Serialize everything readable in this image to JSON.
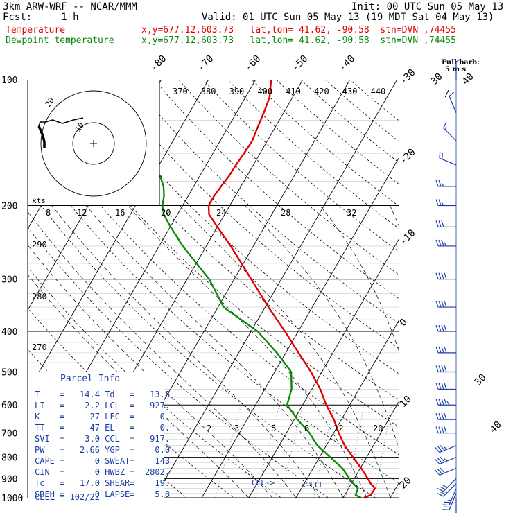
{
  "header": {
    "model": "3km ARW-WRF -- NCAR/MMM",
    "init": "Init: 00 UTC Sun 05 May 13",
    "fcst": "Fcst:     1 h",
    "valid": "Valid: 01 UTC Sun 05 May 13 (19 MDT Sat 04 May 13)",
    "temp_label": "Temperature",
    "temp_info": "x,y=677.12,603.73   lat,lon= 41.62, -90.58  stn=DVN ,74455",
    "dew_label": "Dewpoint temperature",
    "dew_info": "x,y=677.12,603.73   lat,lon= 41.62, -90.58  stn=DVN ,74455",
    "barb_title": "Full barb:",
    "barb_units": "5 m s"
  },
  "colors": {
    "temperature": "#e00000",
    "dewpoint": "#0a8a0a",
    "parcel_text": "#1a3fa8",
    "wind_barbs": "#1a3fa8",
    "grid": "#000000",
    "hodograph": "#000000"
  },
  "parcel": {
    "title": "Parcel Info",
    "rows": [
      {
        "k1": "T",
        "v1": "14.4",
        "k2": "Td",
        "v2": "13.8"
      },
      {
        "k1": "LI",
        "v1": "2.2",
        "k2": "LCL",
        "v2": "927."
      },
      {
        "k1": "K",
        "v1": "27",
        "k2": "LFC",
        "v2": "0."
      },
      {
        "k1": "TT",
        "v1": "47",
        "k2": "EL",
        "v2": "0."
      },
      {
        "k1": "SVI",
        "v1": "3.0",
        "k2": "CCL",
        "v2": "917."
      },
      {
        "k1": "PW",
        "v1": "2.66",
        "k2": "YGP",
        "v2": "0.0"
      },
      {
        "k1": "CAPE",
        "v1": "0",
        "k2": "SWEAT",
        "v2": "143"
      },
      {
        "k1": "CIN",
        "v1": "0",
        "k2": "HWBZ",
        "v2": "2802."
      },
      {
        "k1": "Tc",
        "v1": "17.0",
        "k2": "SHEAR",
        "v2": "19."
      },
      {
        "k1": "SREH",
        "v1": "0",
        "k2": "LAPSE",
        "v2": "5.8"
      }
    ],
    "cell": "CELL = 102/22"
  },
  "chart_data": {
    "type": "line",
    "title": "",
    "xlabel": "",
    "ylabel": "",
    "pressure_ticks": [
      100,
      200,
      300,
      400,
      500,
      600,
      700,
      800,
      900,
      1000
    ],
    "isotherm_labels": [
      -80,
      -70,
      -60,
      -50,
      -40,
      -30,
      -20,
      -10,
      0,
      10,
      20,
      30,
      40
    ],
    "theta_labels": [
      290,
      280,
      270
    ],
    "thetae_labels": [
      370,
      380,
      390,
      400,
      410,
      420,
      430,
      440
    ],
    "mixing_ratio_labels": [
      2,
      3,
      5,
      8,
      12,
      20
    ],
    "hodo_speed_labels": [
      "kts",
      "8",
      "12",
      "16",
      "20",
      "24",
      "28",
      "32"
    ],
    "hodo_ring_labels": [
      "20",
      "10"
    ],
    "markers": {
      "ccl": "CCL->",
      "lcl": "<-LCL"
    },
    "series": [
      {
        "name": "Temperature",
        "p": [
          1000,
          985,
          950,
          925,
          900,
          850,
          800,
          750,
          700,
          650,
          600,
          550,
          500,
          450,
          400,
          350,
          300,
          250,
          225,
          210,
          200,
          190,
          180,
          170,
          160,
          150,
          140,
          130,
          120,
          110,
          100
        ],
        "t": [
          14.4,
          15.5,
          15.6,
          14.1,
          12.9,
          10.2,
          7.1,
          3.9,
          1.1,
          -1.6,
          -5.0,
          -8.2,
          -12.3,
          -17.3,
          -22.8,
          -29.3,
          -36.4,
          -44.8,
          -50.0,
          -53.3,
          -54.5,
          -54.5,
          -54.2,
          -53.8,
          -53.7,
          -53.4,
          -53.2,
          -53.7,
          -54.2,
          -54.9,
          -56.7
        ]
      },
      {
        "name": "Dewpoint temperature",
        "p": [
          1000,
          985,
          950,
          925,
          900,
          850,
          800,
          750,
          700,
          650,
          600,
          550,
          500,
          450,
          400,
          350,
          300,
          250,
          225,
          210,
          200,
          190,
          180,
          170,
          160,
          150,
          140,
          130,
          120,
          110,
          100
        ],
        "t": [
          13.8,
          12.3,
          12.0,
          10.4,
          9.0,
          6.2,
          2.3,
          -1.9,
          -5.1,
          -9.3,
          -13.3,
          -14.3,
          -16.5,
          -21.9,
          -28.6,
          -38.8,
          -45.3,
          -55.0,
          -59.9,
          -62.9,
          -64.3,
          -65.1,
          -66.4,
          -68.4,
          -71.7,
          -74.5,
          -77.2,
          -79.5,
          -81.6,
          -82.6,
          -81.0
        ]
      }
    ],
    "wind_barbs": [
      {
        "p": 1000,
        "sector": "S",
        "speed": 15
      },
      {
        "p": 975,
        "sector": "SSW",
        "speed": 20
      },
      {
        "p": 950,
        "sector": "SSW",
        "speed": 25
      },
      {
        "p": 925,
        "sector": "SW",
        "speed": 25
      },
      {
        "p": 900,
        "sector": "SW",
        "speed": 30
      },
      {
        "p": 850,
        "sector": "WSW",
        "speed": 30
      },
      {
        "p": 800,
        "sector": "WSW",
        "speed": 35
      },
      {
        "p": 750,
        "sector": "WSW",
        "speed": 35
      },
      {
        "p": 700,
        "sector": "W",
        "speed": 40
      },
      {
        "p": 650,
        "sector": "W",
        "speed": 40
      },
      {
        "p": 600,
        "sector": "W",
        "speed": 45
      },
      {
        "p": 550,
        "sector": "W",
        "speed": 40
      },
      {
        "p": 500,
        "sector": "W",
        "speed": 40
      },
      {
        "p": 450,
        "sector": "W",
        "speed": 40
      },
      {
        "p": 400,
        "sector": "W",
        "speed": 40
      },
      {
        "p": 350,
        "sector": "W",
        "speed": 40
      },
      {
        "p": 300,
        "sector": "W",
        "speed": 40
      },
      {
        "p": 250,
        "sector": "W",
        "speed": 35
      },
      {
        "p": 225,
        "sector": "W",
        "speed": 30
      },
      {
        "p": 200,
        "sector": "W",
        "speed": 25
      },
      {
        "p": 180,
        "sector": "W",
        "speed": 25
      },
      {
        "p": 160,
        "sector": "WNW",
        "speed": 20
      },
      {
        "p": 140,
        "sector": "NW",
        "speed": 15
      },
      {
        "p": 120,
        "sector": "NNW",
        "speed": 10
      },
      {
        "p": 100,
        "sector": "N",
        "speed": 5
      }
    ]
  }
}
